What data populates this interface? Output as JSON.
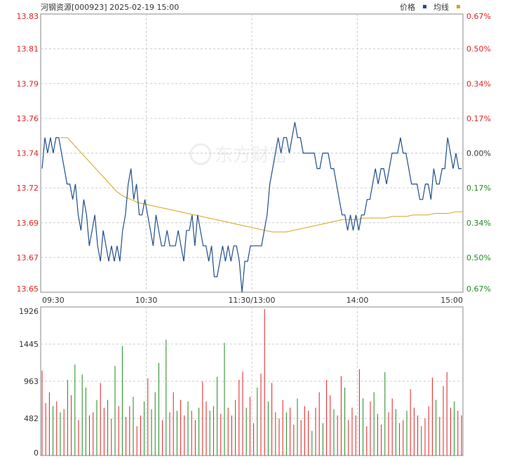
{
  "header": {
    "title": "河钢资源[000923] 2025-02-19 15:00",
    "legend_price": "价格",
    "legend_avg": "均线"
  },
  "colors": {
    "price_line": "#1f4e8c",
    "avg_line": "#d4a520",
    "up": "#e02020",
    "down": "#1e8a1e",
    "left_axis_text": "#e02020",
    "grid": "#cccccc",
    "axis": "#888888"
  },
  "chart_data": [
    {
      "type": "line",
      "price_axis_ticks": [
        "13.83",
        "13.81",
        "13.79",
        "13.76",
        "13.74",
        "13.72",
        "13.69",
        "13.67",
        "13.65"
      ],
      "pct_axis_ticks": [
        "0.67%",
        "0.50%",
        "0.34%",
        "0.17%",
        "0.00%",
        "0.17%",
        "0.34%",
        "0.50%",
        "0.67%"
      ],
      "x_ticks": [
        "09:30",
        "10:30",
        "11:30/13:00",
        "14:00",
        "15:00"
      ],
      "ylim": [
        13.65,
        13.83
      ],
      "base_price": 13.74,
      "series": [
        {
          "name": "价格",
          "values": [
            13.73,
            13.75,
            13.74,
            13.75,
            13.74,
            13.75,
            13.75,
            13.74,
            13.73,
            13.72,
            13.72,
            13.71,
            13.72,
            13.7,
            13.69,
            13.71,
            13.7,
            13.68,
            13.69,
            13.7,
            13.68,
            13.67,
            13.69,
            13.68,
            13.67,
            13.68,
            13.67,
            13.68,
            13.67,
            13.69,
            13.7,
            13.72,
            13.73,
            13.71,
            13.72,
            13.7,
            13.7,
            13.71,
            13.7,
            13.69,
            13.68,
            13.7,
            13.69,
            13.68,
            13.68,
            13.69,
            13.68,
            13.68,
            13.68,
            13.69,
            13.68,
            13.67,
            13.69,
            13.69,
            13.7,
            13.68,
            13.7,
            13.69,
            13.68,
            13.68,
            13.67,
            13.68,
            13.66,
            13.66,
            13.67,
            13.68,
            13.67,
            13.68,
            13.67,
            13.68,
            13.68,
            13.67,
            13.65,
            13.67,
            13.67,
            13.68,
            13.68,
            13.68,
            13.68,
            13.68,
            13.69,
            13.7,
            13.72,
            13.73,
            13.74,
            13.75,
            13.74,
            13.75,
            13.75,
            13.74,
            13.75,
            13.76,
            13.75,
            13.75,
            13.74,
            13.74,
            13.74,
            13.74,
            13.74,
            13.73,
            13.73,
            13.74,
            13.74,
            13.74,
            13.73,
            13.73,
            13.72,
            13.71,
            13.7,
            13.7,
            13.69,
            13.7,
            13.69,
            13.7,
            13.69,
            13.7,
            13.7,
            13.71,
            13.71,
            13.72,
            13.73,
            13.72,
            13.73,
            13.73,
            13.72,
            13.73,
            13.74,
            13.74,
            13.74,
            13.75,
            13.74,
            13.74,
            13.73,
            13.72,
            13.72,
            13.72,
            13.71,
            13.71,
            13.72,
            13.72,
            13.71,
            13.73,
            13.72,
            13.72,
            13.73,
            13.73,
            13.75,
            13.74,
            13.73,
            13.74,
            13.73,
            13.73
          ],
          "color": "#1f4e8c"
        },
        {
          "name": "均线",
          "values": [
            13.75,
            13.75,
            13.745,
            13.74,
            13.735,
            13.73,
            13.725,
            13.72,
            13.715,
            13.712,
            13.71,
            13.708,
            13.707,
            13.706,
            13.705,
            13.704,
            13.703,
            13.702,
            13.701,
            13.7,
            13.699,
            13.698,
            13.697,
            13.696,
            13.695,
            13.694,
            13.693,
            13.692,
            13.691,
            13.69,
            13.689,
            13.689,
            13.689,
            13.69,
            13.691,
            13.692,
            13.693,
            13.694,
            13.695,
            13.696,
            13.697,
            13.697,
            13.697,
            13.698,
            13.698,
            13.698,
            13.698,
            13.699,
            13.699,
            13.699,
            13.7,
            13.7,
            13.7,
            13.701,
            13.701,
            13.701,
            13.702,
            13.702
          ],
          "color": "#d4a520"
        }
      ]
    },
    {
      "type": "bar",
      "ylim": [
        0,
        1926
      ],
      "y_ticks": [
        "1926",
        "1445",
        "963",
        "482",
        "0"
      ],
      "values": [
        1100,
        680,
        820,
        640,
        700,
        560,
        600,
        980,
        780,
        1180,
        460,
        1050,
        880,
        520,
        560,
        720,
        940,
        620,
        720,
        480,
        1160,
        640,
        1420,
        500,
        640,
        760,
        380,
        520,
        700,
        1000,
        600,
        820,
        1200,
        460,
        1500,
        560,
        820,
        580,
        720,
        520,
        700,
        580,
        460,
        620,
        960,
        700,
        580,
        640,
        1020,
        540,
        1460,
        620,
        520,
        720,
        980,
        1090,
        620,
        760,
        420,
        880,
        1060,
        1900,
        700,
        940,
        560,
        480,
        720,
        560,
        620,
        400,
        740,
        460,
        640,
        580,
        320,
        620,
        820,
        420,
        980,
        780,
        600,
        520,
        1030,
        880,
        460,
        620,
        520,
        1120,
        740,
        380,
        700,
        820,
        540,
        400,
        1080,
        560,
        740,
        600,
        420,
        460,
        580,
        860,
        620,
        520,
        380,
        480,
        640,
        1010,
        720,
        500,
        900,
        1080,
        620,
        700,
        580,
        520
      ],
      "directions": [
        "u",
        "u",
        "u",
        "d",
        "u",
        "d",
        "u",
        "d",
        "u",
        "d",
        "u",
        "d",
        "d",
        "u",
        "u",
        "d",
        "u",
        "u",
        "d",
        "u",
        "d",
        "u",
        "d",
        "u",
        "u",
        "d",
        "u",
        "u",
        "d",
        "u",
        "d",
        "d",
        "d",
        "u",
        "d",
        "u",
        "u",
        "d",
        "u",
        "u",
        "d",
        "u",
        "u",
        "d",
        "u",
        "u",
        "d",
        "u",
        "d",
        "u",
        "d",
        "u",
        "u",
        "d",
        "u",
        "u",
        "d",
        "u",
        "u",
        "d",
        "u",
        "u",
        "d",
        "u",
        "d",
        "u",
        "u",
        "d",
        "u",
        "u",
        "d",
        "u",
        "u",
        "u",
        "d",
        "u",
        "u",
        "d",
        "u",
        "u",
        "d",
        "u",
        "u",
        "d",
        "u",
        "u",
        "u",
        "u",
        "d",
        "u",
        "u",
        "d",
        "u",
        "u",
        "d",
        "u",
        "u",
        "d",
        "u",
        "u",
        "d",
        "u",
        "u",
        "u",
        "d",
        "u",
        "u",
        "u",
        "d",
        "u",
        "u",
        "u",
        "u",
        "d",
        "u",
        "u",
        "d",
        "u"
      ]
    }
  ],
  "watermark": "东方财富"
}
